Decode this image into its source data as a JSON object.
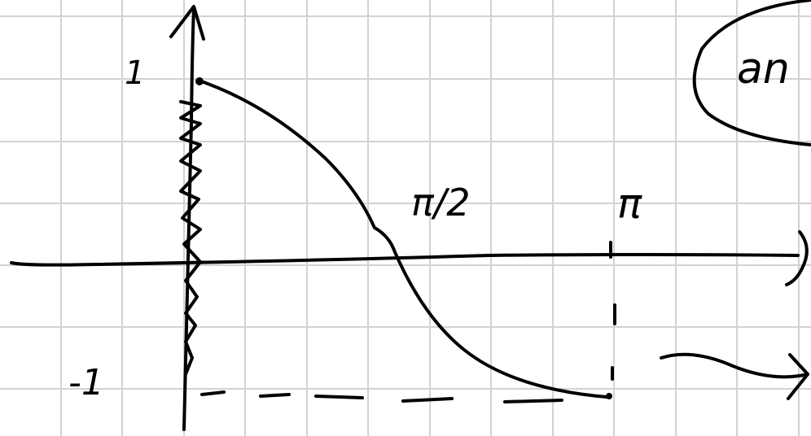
{
  "labels": {
    "y_max": "1",
    "y_min": "-1",
    "x_half": "π/2",
    "x_end": "π",
    "note": "an"
  }
}
